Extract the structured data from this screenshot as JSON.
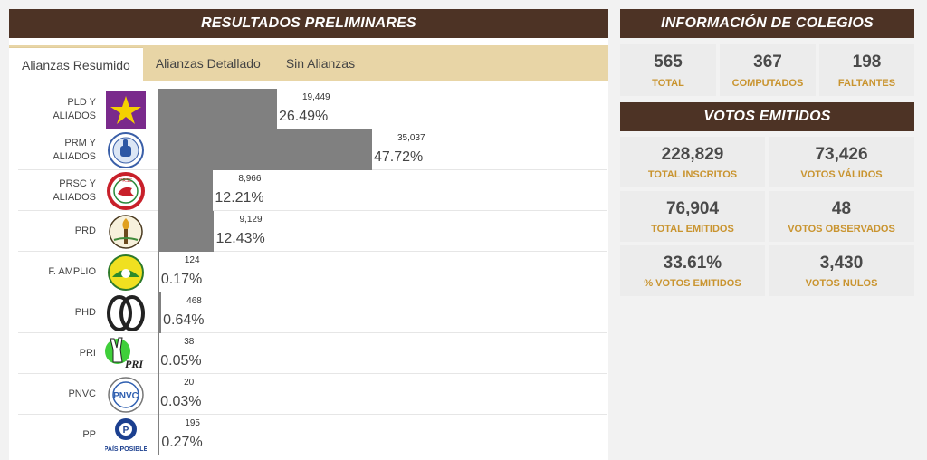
{
  "left_panel": {
    "title": "RESULTADOS PRELIMINARES",
    "tabs": [
      {
        "label": "Alianzas Resumido",
        "active": true
      },
      {
        "label": "Alianzas Detallado",
        "active": false
      },
      {
        "label": "Sin Alianzas",
        "active": false
      }
    ]
  },
  "chart_data": {
    "type": "bar",
    "orientation": "horizontal",
    "categories": [
      "PLD Y ALIADOS",
      "PRM Y ALIADOS",
      "PRSC Y ALIADOS",
      "PRD",
      "F. AMPLIO",
      "PHD",
      "PRI",
      "PNVC",
      "PP"
    ],
    "series": [
      {
        "values": [
          19449,
          35037,
          8966,
          9129,
          124,
          468,
          38,
          20,
          195
        ]
      }
    ],
    "value_labels": [
      "19,449",
      "35,037",
      "8,966",
      "9,129",
      "124",
      "468",
      "38",
      "20",
      "195"
    ],
    "percent_labels": [
      "26.49%",
      "47.72%",
      "12.21%",
      "12.43%",
      "0.17%",
      "0.64%",
      "0.05%",
      "0.03%",
      "0.27%"
    ],
    "bar_color": "#808080"
  },
  "parties": [
    {
      "line1": "PLD Y",
      "line2": "ALIADOS",
      "logo": "pld-star-logo"
    },
    {
      "line1": "PRM Y",
      "line2": "ALIADOS",
      "logo": "prm-thumb-logo"
    },
    {
      "line1": "PRSC Y",
      "line2": "ALIADOS",
      "logo": "prsc-dove-logo"
    },
    {
      "line1": "PRD",
      "line2": "",
      "logo": "prd-torch-logo"
    },
    {
      "line1": "F. AMPLIO",
      "line2": "",
      "logo": "frente-amplio-sun-logo"
    },
    {
      "line1": "PHD",
      "line2": "",
      "logo": "phd-rings-logo"
    },
    {
      "line1": "PRI",
      "line2": "",
      "logo": "pri-victory-hand-logo"
    },
    {
      "line1": "PNVC",
      "line2": "",
      "logo": "pnvc-seal-logo"
    },
    {
      "line1": "PP",
      "line2": "",
      "logo": "pais-posible-logo",
      "logo_text": "PAÍS POSIBLE"
    }
  ],
  "logo_texts": {
    "pri": "PRI",
    "pnvc": "PNVC",
    "prsc": "PRSC",
    "pp": "P"
  },
  "colegios": {
    "title": "INFORMACIÓN DE COLEGIOS",
    "items": [
      {
        "value": "565",
        "label": "TOTAL"
      },
      {
        "value": "367",
        "label": "COMPUTADOS"
      },
      {
        "value": "198",
        "label": "FALTANTES"
      }
    ]
  },
  "votos": {
    "title": "VOTOS EMITIDOS",
    "items": [
      {
        "value": "228,829",
        "label": "TOTAL INSCRITOS"
      },
      {
        "value": "73,426",
        "label": "VOTOS VÁLIDOS"
      },
      {
        "value": "76,904",
        "label": "TOTAL EMITIDOS"
      },
      {
        "value": "48",
        "label": "VOTOS OBSERVADOS"
      },
      {
        "value": "33.61%",
        "label": "% VOTOS EMITIDOS"
      },
      {
        "value": "3,430",
        "label": "VOTOS NULOS"
      }
    ]
  },
  "colors": {
    "header": "#4d3325",
    "tabs_bg": "#e8d5a6",
    "label_gold": "#c9942f",
    "card_bg": "#ececec"
  }
}
